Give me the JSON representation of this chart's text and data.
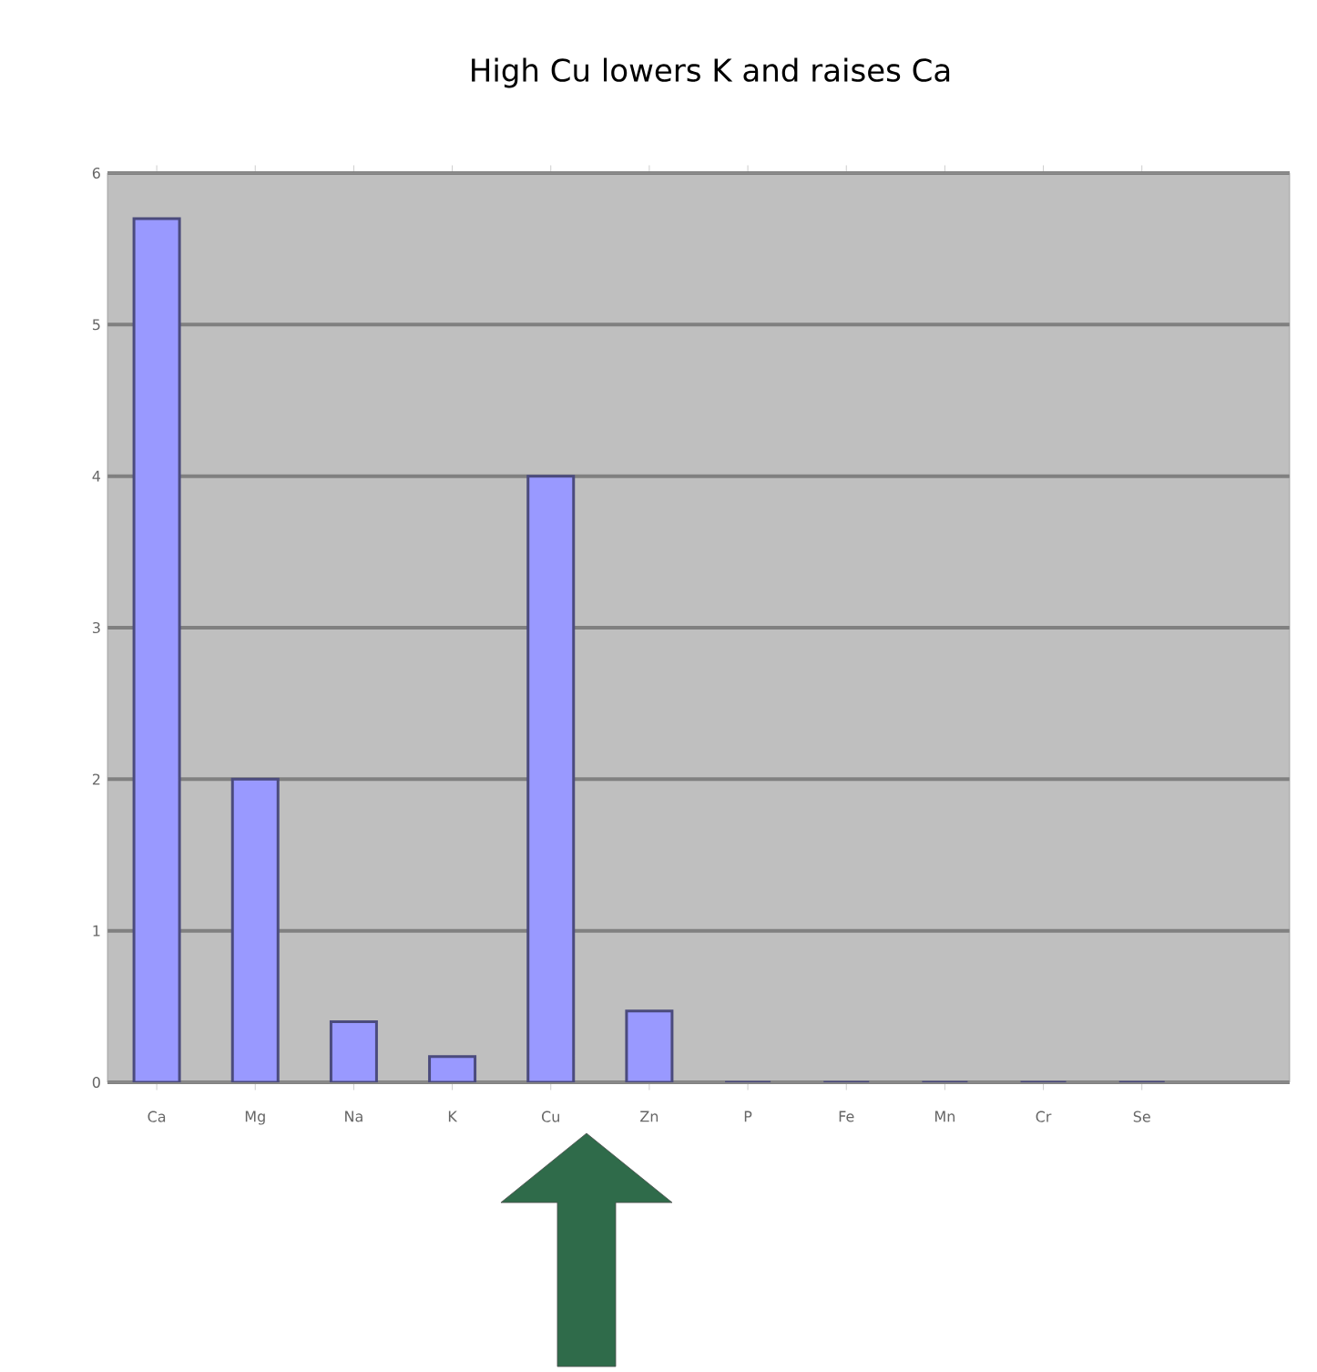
{
  "chart_data": {
    "type": "bar",
    "title": "High Cu lowers K and raises Ca",
    "categories": [
      "Ca",
      "Mg",
      "Na",
      "K",
      "Cu",
      "Zn",
      "P",
      "Fe",
      "Mn",
      "Cr",
      "Se"
    ],
    "values": [
      5.7,
      2.0,
      0.4,
      0.17,
      4.0,
      0.47,
      0,
      0,
      0,
      0,
      0
    ],
    "color": "#9999ff",
    "ylim": [
      0,
      6
    ],
    "yticks": [
      0,
      1,
      2,
      3,
      4,
      5,
      6
    ],
    "grid": "y"
  }
}
